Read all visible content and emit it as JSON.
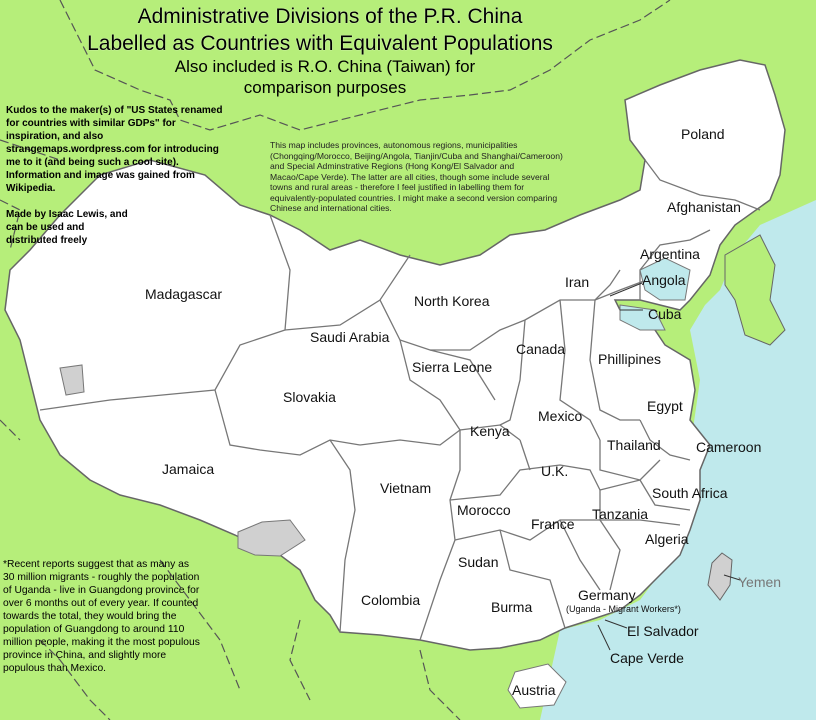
{
  "title": {
    "line1": "Administrative Divisions of the P.R. China",
    "line2": "Labelled as Countries with Equivalent Populations",
    "sub1": "Also included is R.O. China (Taiwan) for",
    "sub2": "comparison purposes"
  },
  "notes": {
    "kudos": "Kudos to the maker(s) of \"US States renamed for countries with similar GDPs\" for inspiration, and also strangemaps.wordpress.com for introducing me to it (and being such a cool site). Information and image was gained from Wikipedia.",
    "madeby": "Made by Isaac Lewis, and can be used and distributed freely",
    "info": "This map includes provinces, autonomous regions, municipalities (Chongqing/Morocco, Beijing/Angola, Tianjin/Cuba and Shanghai/Cameroon) and Special Adminstrative Regions (Hong Kong/El Salvador and Macao/Cape Verde). The latter are all cities, though some include several towns and rural areas - therefore I feel justified in labelling them for equivalently-populated countries. I might make a second version comparing Chinese and international cities.",
    "migrants": "*Recent reports suggest that as many as 30 million migrants - roughly the population of Uganda - live in Guangdong province for over 6 months out of every year. If counted towards the total, they would bring the population of Guangdong to around 110 million people, making it the most populous province in China, and slightly more populous than Mexico."
  },
  "labels": {
    "poland": "Poland",
    "afghanistan": "Afghanistan",
    "argentina": "Argentina",
    "angola": "Angola",
    "cuba": "Cuba",
    "iran": "Iran",
    "madagascar": "Madagascar",
    "north_korea": "North Korea",
    "saudi_arabia": "Saudi Arabia",
    "sierra_leone": "Sierra Leone",
    "canada": "Canada",
    "phillipines": "Phillipines",
    "egypt": "Egypt",
    "slovakia": "Slovakia",
    "mexico": "Mexico",
    "kenya": "Kenya",
    "thailand": "Thailand",
    "cameroon": "Cameroon",
    "jamaica": "Jamaica",
    "vietnam": "Vietnam",
    "uk": "U.K.",
    "south_africa": "South Africa",
    "morocco": "Morocco",
    "france": "France",
    "tanzania": "Tanzania",
    "algeria": "Algeria",
    "sudan": "Sudan",
    "yemen": "Yemen",
    "colombia": "Colombia",
    "burma": "Burma",
    "germany": "Germany",
    "germany_note": "(Uganda - Migrant Workers*)",
    "el_salvador": "El Salvador",
    "cape_verde": "Cape Verde",
    "austria": "Austria"
  },
  "colors": {
    "sea": "#bfe9ec",
    "foreign_land": "#b6ee7a",
    "china": "#ffffff",
    "disputed": "#d0d0d0",
    "border": "#777777"
  }
}
